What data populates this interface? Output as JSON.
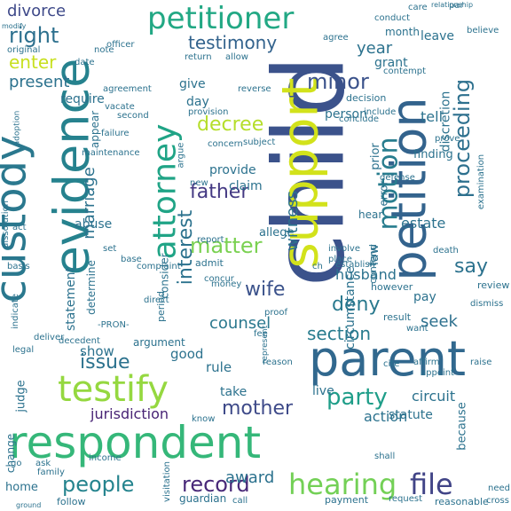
{
  "words": [
    {
      "text": "child",
      "color": "#3b528b"
    },
    {
      "text": "respondent",
      "color": "#35b779"
    },
    {
      "text": "evidence",
      "color": "#26828e"
    },
    {
      "text": "custody",
      "color": "#2a788e"
    },
    {
      "text": "petition",
      "color": "#33638d"
    },
    {
      "text": "support",
      "color": "#d2e21b"
    },
    {
      "text": "parent",
      "color": "#31688e"
    },
    {
      "text": "petitioner",
      "color": "#22a884"
    },
    {
      "text": "testify",
      "color": "#95d840"
    },
    {
      "text": "attorney",
      "color": "#20a486"
    },
    {
      "text": "hearing",
      "color": "#73d056"
    },
    {
      "text": "file",
      "color": "#414487"
    },
    {
      "text": "party",
      "color": "#1f9e89"
    },
    {
      "text": "mother",
      "color": "#3e4a89"
    },
    {
      "text": "father",
      "color": "#443983"
    },
    {
      "text": "decree",
      "color": "#b5de2b"
    },
    {
      "text": "motion",
      "color": "#287d8e"
    },
    {
      "text": "proceeding",
      "color": "#2d708e"
    },
    {
      "text": "people",
      "color": "#25848e"
    },
    {
      "text": "record",
      "color": "#482878"
    },
    {
      "text": "right",
      "color": "#2d708e"
    },
    {
      "text": "testimony",
      "color": "#33638d"
    },
    {
      "text": "minor",
      "color": "#3b528b"
    },
    {
      "text": "interest",
      "color": "#2c728e"
    },
    {
      "text": "matter",
      "color": "#7ad151"
    },
    {
      "text": "deny",
      "color": "#29798e"
    },
    {
      "text": "section",
      "color": "#287c8e"
    },
    {
      "text": "issue",
      "color": "#2c728e"
    },
    {
      "text": "wife",
      "color": "#3b528b"
    },
    {
      "text": "say",
      "color": "#2c728e"
    },
    {
      "text": "seek",
      "color": "#2d708e"
    },
    {
      "text": "witness",
      "color": "#2c728e"
    },
    {
      "text": "marriage",
      "color": "#2c728e"
    },
    {
      "text": "divorce",
      "color": "#3e4989"
    },
    {
      "text": "enter",
      "color": "#c8e020"
    },
    {
      "text": "present",
      "color": "#2c728e"
    },
    {
      "text": "year",
      "color": "#2c728e"
    },
    {
      "text": "counsel",
      "color": "#2a788e"
    },
    {
      "text": "award",
      "color": "#2c728e"
    },
    {
      "text": "jurisdiction",
      "color": "#482475"
    },
    {
      "text": "husband",
      "color": "#2c728e"
    },
    {
      "text": "circuit",
      "color": "#2c728e"
    },
    {
      "text": "action",
      "color": "#2c728e"
    },
    {
      "text": "statement",
      "color": "#2c728e"
    },
    {
      "text": "determine",
      "color": "#2c728e"
    },
    {
      "text": "provide",
      "color": "#2c728e"
    },
    {
      "text": "claim",
      "color": "#2c728e"
    },
    {
      "text": "consider",
      "color": "#2c728e"
    },
    {
      "text": "circumstance",
      "color": "#2c728e"
    },
    {
      "text": "abuse",
      "color": "#2c728e"
    },
    {
      "text": "estate",
      "color": "#2c728e"
    },
    {
      "text": "person",
      "color": "#2c728e"
    },
    {
      "text": "tell",
      "color": "#2c728e"
    },
    {
      "text": "discretion",
      "color": "#2c728e"
    },
    {
      "text": "leave",
      "color": "#2c728e"
    },
    {
      "text": "grant",
      "color": "#2c728e"
    },
    {
      "text": "month",
      "color": "#2c728e"
    },
    {
      "text": "require",
      "color": "#2c728e"
    },
    {
      "text": "give",
      "color": "#2c728e"
    },
    {
      "text": "day",
      "color": "#2c728e"
    },
    {
      "text": "appear",
      "color": "#2c728e"
    },
    {
      "text": "finding",
      "color": "#2c728e"
    },
    {
      "text": "decision",
      "color": "#2c728e"
    },
    {
      "text": "prior",
      "color": "#2c728e"
    },
    {
      "text": "error",
      "color": "#2c728e"
    },
    {
      "text": "allege",
      "color": "#2c728e"
    },
    {
      "text": "rule",
      "color": "#2c728e"
    },
    {
      "text": "good",
      "color": "#2c728e"
    },
    {
      "text": "take",
      "color": "#2c728e"
    },
    {
      "text": "live",
      "color": "#2c728e"
    },
    {
      "text": "show",
      "color": "#2c728e"
    },
    {
      "text": "judge",
      "color": "#2c728e"
    },
    {
      "text": "statute",
      "color": "#2c728e"
    },
    {
      "text": "because",
      "color": "#2c728e"
    },
    {
      "text": "law",
      "color": "#2c728e"
    },
    {
      "text": "pay",
      "color": "#2c728e"
    },
    {
      "text": "result",
      "color": "#2c728e"
    },
    {
      "text": "review",
      "color": "#2c728e"
    },
    {
      "text": "home",
      "color": "#2c728e"
    },
    {
      "text": "change",
      "color": "#2c728e"
    },
    {
      "text": "follow",
      "color": "#2c728e"
    },
    {
      "text": "guardian",
      "color": "#2c728e"
    },
    {
      "text": "payment",
      "color": "#2c728e"
    },
    {
      "text": "reasonable",
      "color": "#2c728e"
    },
    {
      "text": "contend",
      "color": "#2c728e"
    },
    {
      "text": "hear",
      "color": "#2c728e"
    },
    {
      "text": "argument",
      "color": "#2c728e"
    },
    {
      "text": "admit",
      "color": "#2c728e"
    },
    {
      "text": "period",
      "color": "#2c728e"
    },
    {
      "text": "however",
      "color": "#2c728e"
    },
    {
      "text": "dissolution",
      "color": "#2c728e"
    },
    {
      "text": "conduct",
      "color": "#2c728e"
    },
    {
      "text": "care",
      "color": "#2c728e"
    },
    {
      "text": "par",
      "color": "#2c728e"
    },
    {
      "text": "note",
      "color": "#2c728e"
    },
    {
      "text": "agree",
      "color": "#2c728e"
    },
    {
      "text": "return",
      "color": "#2c728e"
    },
    {
      "text": "allow",
      "color": "#2c728e"
    },
    {
      "text": "concern",
      "color": "#2c728e"
    },
    {
      "text": "act",
      "color": "#2c728e"
    },
    {
      "text": "set",
      "color": "#2c728e"
    },
    {
      "text": "base",
      "color": "#2c728e"
    },
    {
      "text": "fee",
      "color": "#2c728e"
    },
    {
      "text": "reason",
      "color": "#2c728e"
    },
    {
      "text": "death",
      "color": "#2c728e"
    },
    {
      "text": "involve",
      "color": "#2c728e"
    },
    {
      "text": "place",
      "color": "#2c728e"
    },
    {
      "text": "establish",
      "color": "#2c728e"
    },
    {
      "text": "ch",
      "color": "#2c728e"
    },
    {
      "text": "basis",
      "color": "#2c728e"
    },
    {
      "text": "indicate",
      "color": "#2c728e"
    },
    {
      "text": "deliver",
      "color": "#2c728e"
    },
    {
      "text": "legal",
      "color": "#2c728e"
    },
    {
      "text": "ask",
      "color": "#2c728e"
    },
    {
      "text": "family",
      "color": "#2c728e"
    },
    {
      "text": "go",
      "color": "#2c728e"
    },
    {
      "text": "know",
      "color": "#2c728e"
    },
    {
      "text": "decedent",
      "color": "#2c728e"
    },
    {
      "text": "report",
      "color": "#2c728e"
    },
    {
      "text": "complaint",
      "color": "#2c728e"
    },
    {
      "text": "direct",
      "color": "#2c728e"
    },
    {
      "text": "concur",
      "color": "#2c728e"
    },
    {
      "text": "money",
      "color": "#2c728e"
    },
    {
      "text": "proof",
      "color": "#2c728e"
    },
    {
      "text": "want",
      "color": "#2c728e"
    },
    {
      "text": "dismiss",
      "color": "#2c728e"
    },
    {
      "text": "raise",
      "color": "#2c728e"
    },
    {
      "text": "cite",
      "color": "#2c728e"
    },
    {
      "text": "affirm",
      "color": "#2c728e"
    },
    {
      "text": "appoint",
      "color": "#2c728e"
    },
    {
      "text": "shall",
      "color": "#2c728e"
    },
    {
      "text": "request",
      "color": "#2c728e"
    },
    {
      "text": "call",
      "color": "#2c728e"
    },
    {
      "text": "visitation",
      "color": "#2c728e"
    },
    {
      "text": "income",
      "color": "#2c728e"
    },
    {
      "text": "officer",
      "color": "#2c728e"
    },
    {
      "text": "date",
      "color": "#2c728e"
    },
    {
      "text": "agreement",
      "color": "#2c728e"
    },
    {
      "text": "vacate",
      "color": "#2c728e"
    },
    {
      "text": "second",
      "color": "#2c728e"
    },
    {
      "text": "failure",
      "color": "#2c728e"
    },
    {
      "text": "maintenance",
      "color": "#2c728e"
    },
    {
      "text": "provision",
      "color": "#2c728e"
    },
    {
      "text": "subject",
      "color": "#2c728e"
    },
    {
      "text": "argue",
      "color": "#2c728e"
    },
    {
      "text": "new",
      "color": "#2c728e"
    },
    {
      "text": "reverse",
      "color": "#2c728e"
    },
    {
      "text": "include",
      "color": "#2c728e"
    },
    {
      "text": "contempt",
      "color": "#2c728e"
    },
    {
      "text": "conclude",
      "color": "#2c728e"
    },
    {
      "text": "prove",
      "color": "#2c728e"
    },
    {
      "text": "examination",
      "color": "#2c728e"
    },
    {
      "text": "defense",
      "color": "#2c728e"
    },
    {
      "text": "believe",
      "color": "#2c728e"
    },
    {
      "text": "original",
      "color": "#2c728e"
    },
    {
      "text": "relationship",
      "color": "#2c728e"
    },
    {
      "text": "modify",
      "color": "#2c728e"
    },
    {
      "text": "adoption",
      "color": "#2c728e"
    },
    {
      "text": "-PRON-",
      "color": "#2c728e"
    },
    {
      "text": "represent",
      "color": "#2c728e"
    },
    {
      "text": "need",
      "color": "#2c728e"
    },
    {
      "text": "cross",
      "color": "#2c728e"
    },
    {
      "text": "ground",
      "color": "#2c728e"
    }
  ]
}
